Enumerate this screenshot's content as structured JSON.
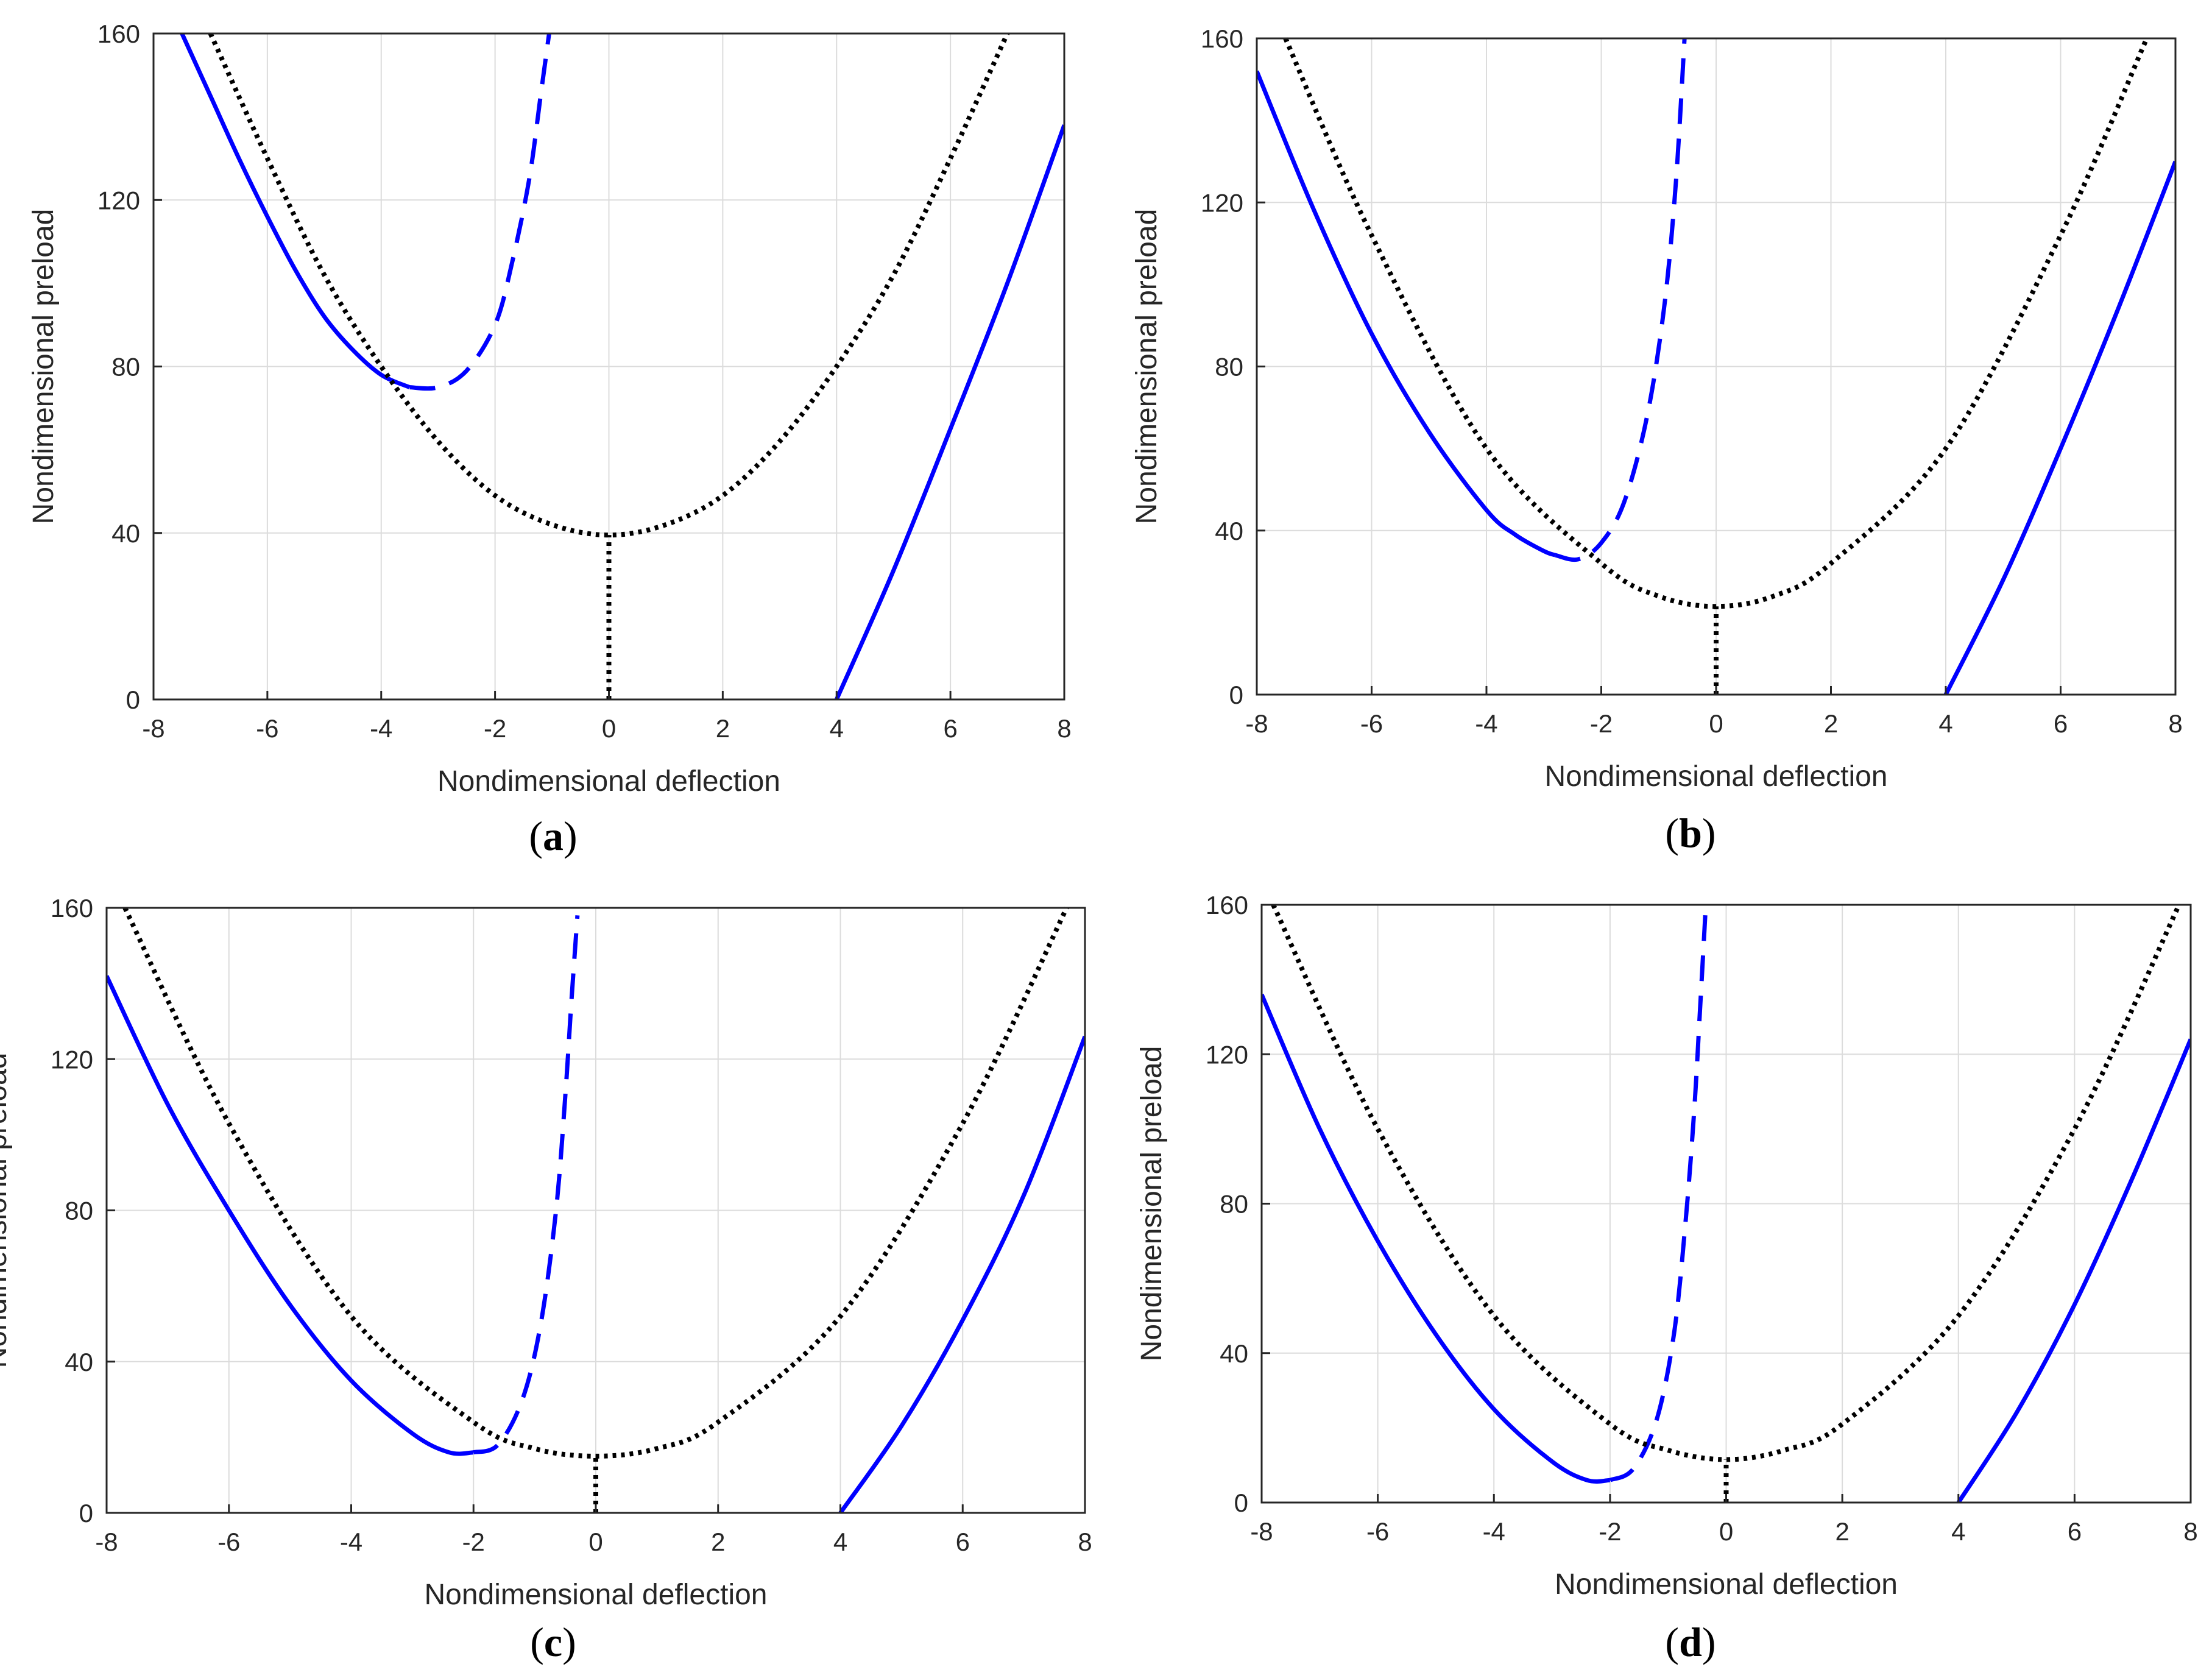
{
  "chart_data": [
    {
      "panel": "(a)",
      "panel_letter": "a",
      "type": "line",
      "xlabel": "Nondimensional deflection",
      "ylabel": "Nondimensional preload",
      "xlim": [
        -8,
        8
      ],
      "ylim": [
        0,
        160
      ],
      "xticks": [
        "-8",
        "-6",
        "-4",
        "-2",
        "0",
        "2",
        "4",
        "6",
        "8"
      ],
      "yticks": [
        "0",
        "40",
        "80",
        "120",
        "160"
      ],
      "grid": true,
      "series": [
        {
          "name": "stable-left-branch",
          "style": "solid",
          "color": "#0000ff",
          "x": [
            -7.5,
            -7,
            -6.5,
            -6,
            -5.5,
            -5,
            -4.5,
            -4,
            -3.5
          ],
          "y": [
            160,
            145,
            130,
            116,
            103,
            92,
            84,
            78,
            75
          ]
        },
        {
          "name": "unstable-branch",
          "style": "dashed",
          "color": "#0000ff",
          "x": [
            -3.5,
            -3,
            -2.5,
            -2,
            -1.7,
            -1.4,
            -1.2,
            -1.05
          ],
          "y": [
            75,
            75,
            79,
            90,
            105,
            125,
            145,
            160
          ]
        },
        {
          "name": "stable-right-branch",
          "style": "solid",
          "color": "#0000ff",
          "x": [
            4,
            5,
            6,
            7,
            8
          ],
          "y": [
            0,
            31,
            65,
            100,
            138
          ]
        },
        {
          "name": "reference-parabola",
          "style": "dotted",
          "color": "#000000",
          "x": [
            -7,
            -6,
            -5,
            -4,
            -3,
            -2,
            -1,
            0,
            1,
            2,
            3,
            4,
            5,
            6,
            7
          ],
          "y": [
            160,
            130,
            102,
            80,
            62,
            49,
            42,
            39.5,
            42,
            49,
            62,
            80,
            102,
            130,
            160
          ]
        },
        {
          "name": "reference-stem",
          "style": "dotted",
          "color": "#000000",
          "x": [
            0,
            0
          ],
          "y": [
            0,
            39.5
          ]
        }
      ]
    },
    {
      "panel": "(b)",
      "panel_letter": "b",
      "type": "line",
      "xlabel": "Nondimensional deflection",
      "ylabel": "Nondimensional preload",
      "xlim": [
        -8,
        8
      ],
      "ylim": [
        0,
        160
      ],
      "xticks": [
        "-8",
        "-6",
        "-4",
        "-2",
        "0",
        "2",
        "4",
        "6",
        "8"
      ],
      "yticks": [
        "0",
        "40",
        "80",
        "120",
        "160"
      ],
      "grid": true,
      "series": [
        {
          "name": "stable-left-branch",
          "style": "solid",
          "color": "#0000ff",
          "x": [
            -8,
            -7,
            -6,
            -5,
            -4,
            -3.5,
            -3,
            -2.8
          ],
          "y": [
            152,
            118,
            88,
            64,
            45,
            39,
            35,
            34
          ]
        },
        {
          "name": "unstable-branch",
          "style": "dashed",
          "color": "#0000ff",
          "x": [
            -2.8,
            -2.4,
            -2,
            -1.6,
            -1.2,
            -0.9,
            -0.7,
            -0.55
          ],
          "y": [
            34,
            33,
            37,
            47,
            68,
            95,
            125,
            160
          ]
        },
        {
          "name": "stable-right-branch",
          "style": "solid",
          "color": "#0000ff",
          "x": [
            4,
            5,
            6,
            7,
            8
          ],
          "y": [
            0,
            28,
            60,
            94,
            130
          ]
        },
        {
          "name": "reference-parabola",
          "style": "dotted",
          "color": "#000000",
          "x": [
            -7.5,
            -6,
            -4,
            -2,
            -1,
            0,
            1,
            2,
            4,
            6,
            7.5
          ],
          "y": [
            160,
            112,
            60,
            32,
            24,
            21.5,
            24,
            32,
            60,
            112,
            160
          ]
        },
        {
          "name": "reference-stem",
          "style": "dotted",
          "color": "#000000",
          "x": [
            0,
            0
          ],
          "y": [
            0,
            21.5
          ]
        }
      ]
    },
    {
      "panel": "(c)",
      "panel_letter": "c",
      "type": "line",
      "xlabel": "Nondimensional deflection",
      "ylabel": "Nondimensional preload",
      "xlim": [
        -8,
        8
      ],
      "ylim": [
        0,
        160
      ],
      "xticks": [
        "-8",
        "-6",
        "-4",
        "-2",
        "0",
        "2",
        "4",
        "6",
        "8"
      ],
      "yticks": [
        "0",
        "40",
        "80",
        "120",
        "160"
      ],
      "grid": true,
      "series": [
        {
          "name": "stable-left-branch",
          "style": "solid",
          "color": "#0000ff",
          "x": [
            -8,
            -7,
            -6,
            -5,
            -4,
            -3,
            -2.4,
            -2
          ],
          "y": [
            142,
            108,
            80,
            55,
            35,
            21,
            16,
            16
          ]
        },
        {
          "name": "unstable-branch",
          "style": "dashed",
          "color": "#0000ff",
          "x": [
            -2,
            -1.6,
            -1.2,
            -0.9,
            -0.65,
            -0.5,
            -0.4,
            -0.3
          ],
          "y": [
            16,
            18,
            30,
            50,
            80,
            110,
            135,
            158
          ]
        },
        {
          "name": "stable-right-branch",
          "style": "solid",
          "color": "#0000ff",
          "x": [
            4,
            5,
            6,
            7,
            8
          ],
          "y": [
            0,
            23,
            51,
            84,
            126
          ]
        },
        {
          "name": "reference-parabola",
          "style": "dotted",
          "color": "#000000",
          "x": [
            -7.7,
            -6,
            -4,
            -2,
            -1,
            0,
            1,
            2,
            4,
            6,
            7.7
          ],
          "y": [
            160,
            103,
            52,
            24,
            17,
            15,
            17,
            24,
            52,
            103,
            160
          ]
        },
        {
          "name": "reference-stem",
          "style": "dotted",
          "color": "#000000",
          "x": [
            0,
            0
          ],
          "y": [
            0,
            15
          ]
        }
      ]
    },
    {
      "panel": "(d)",
      "panel_letter": "d",
      "type": "line",
      "xlabel": "Nondimensional deflection",
      "ylabel": "Nondimensional preload",
      "xlim": [
        -8,
        8
      ],
      "ylim": [
        0,
        160
      ],
      "xticks": [
        "-8",
        "-6",
        "-4",
        "-2",
        "0",
        "2",
        "4",
        "6",
        "8"
      ],
      "yticks": [
        "0",
        "40",
        "80",
        "120",
        "160"
      ],
      "grid": true,
      "series": [
        {
          "name": "stable-left-branch",
          "style": "solid",
          "color": "#0000ff",
          "x": [
            -8,
            -7,
            -6,
            -5,
            -4,
            -3,
            -2.4,
            -2
          ],
          "y": [
            136,
            100,
            70,
            45,
            25,
            11,
            6,
            6
          ]
        },
        {
          "name": "unstable-branch",
          "style": "dashed",
          "color": "#0000ff",
          "x": [
            -2,
            -1.6,
            -1.2,
            -0.9,
            -0.7,
            -0.55,
            -0.45,
            -0.35
          ],
          "y": [
            6,
            9,
            22,
            45,
            75,
            105,
            132,
            160
          ]
        },
        {
          "name": "stable-right-branch",
          "style": "solid",
          "color": "#0000ff",
          "x": [
            4,
            5,
            6,
            7,
            8
          ],
          "y": [
            0,
            24,
            53,
            87,
            124
          ]
        },
        {
          "name": "reference-parabola",
          "style": "dotted",
          "color": "#000000",
          "x": [
            -7.8,
            -6,
            -4,
            -2,
            -1,
            0,
            1,
            2,
            4,
            6,
            7.8
          ],
          "y": [
            160,
            100,
            50,
            21,
            14,
            11.5,
            14,
            21,
            50,
            100,
            160
          ]
        },
        {
          "name": "reference-stem",
          "style": "dotted",
          "color": "#000000",
          "x": [
            0,
            0
          ],
          "y": [
            0,
            11.5
          ]
        }
      ]
    }
  ]
}
